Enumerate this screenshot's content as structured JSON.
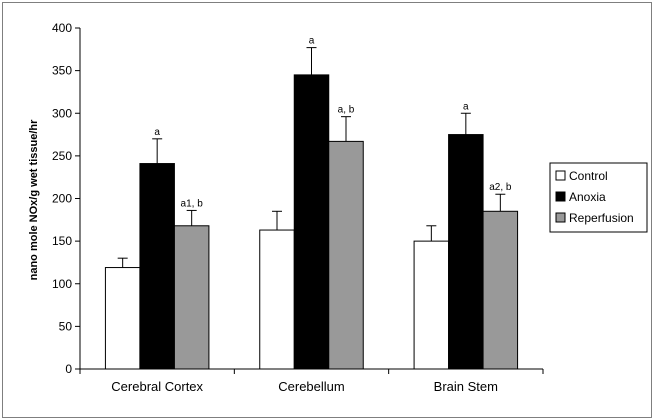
{
  "chart_data": {
    "type": "bar",
    "title": "",
    "xlabel": "",
    "ylabel": "nano mole NOx/g wet tissue/hr",
    "ylim": [
      0,
      400
    ],
    "yticks": [
      0,
      50,
      100,
      150,
      200,
      250,
      300,
      350,
      400
    ],
    "grid": false,
    "categories": [
      "Cerebral Cortex",
      "Cerebellum",
      "Brain Stem"
    ],
    "series": [
      {
        "name": "Control",
        "color": "#ffffff",
        "values": [
          119,
          163,
          150
        ],
        "errors": [
          11,
          22,
          18
        ],
        "annotations": [
          "",
          "",
          ""
        ]
      },
      {
        "name": "Anoxia",
        "color": "#000000",
        "values": [
          241,
          345,
          275
        ],
        "errors": [
          29,
          32,
          25
        ],
        "annotations": [
          "a",
          "a",
          "a"
        ]
      },
      {
        "name": "Reperfusion",
        "color": "#999999",
        "values": [
          168,
          267,
          185
        ],
        "errors": [
          18,
          29,
          20
        ],
        "annotations": [
          "a1, b",
          "a, b",
          "a2, b"
        ]
      }
    ],
    "legend_position": "right"
  }
}
